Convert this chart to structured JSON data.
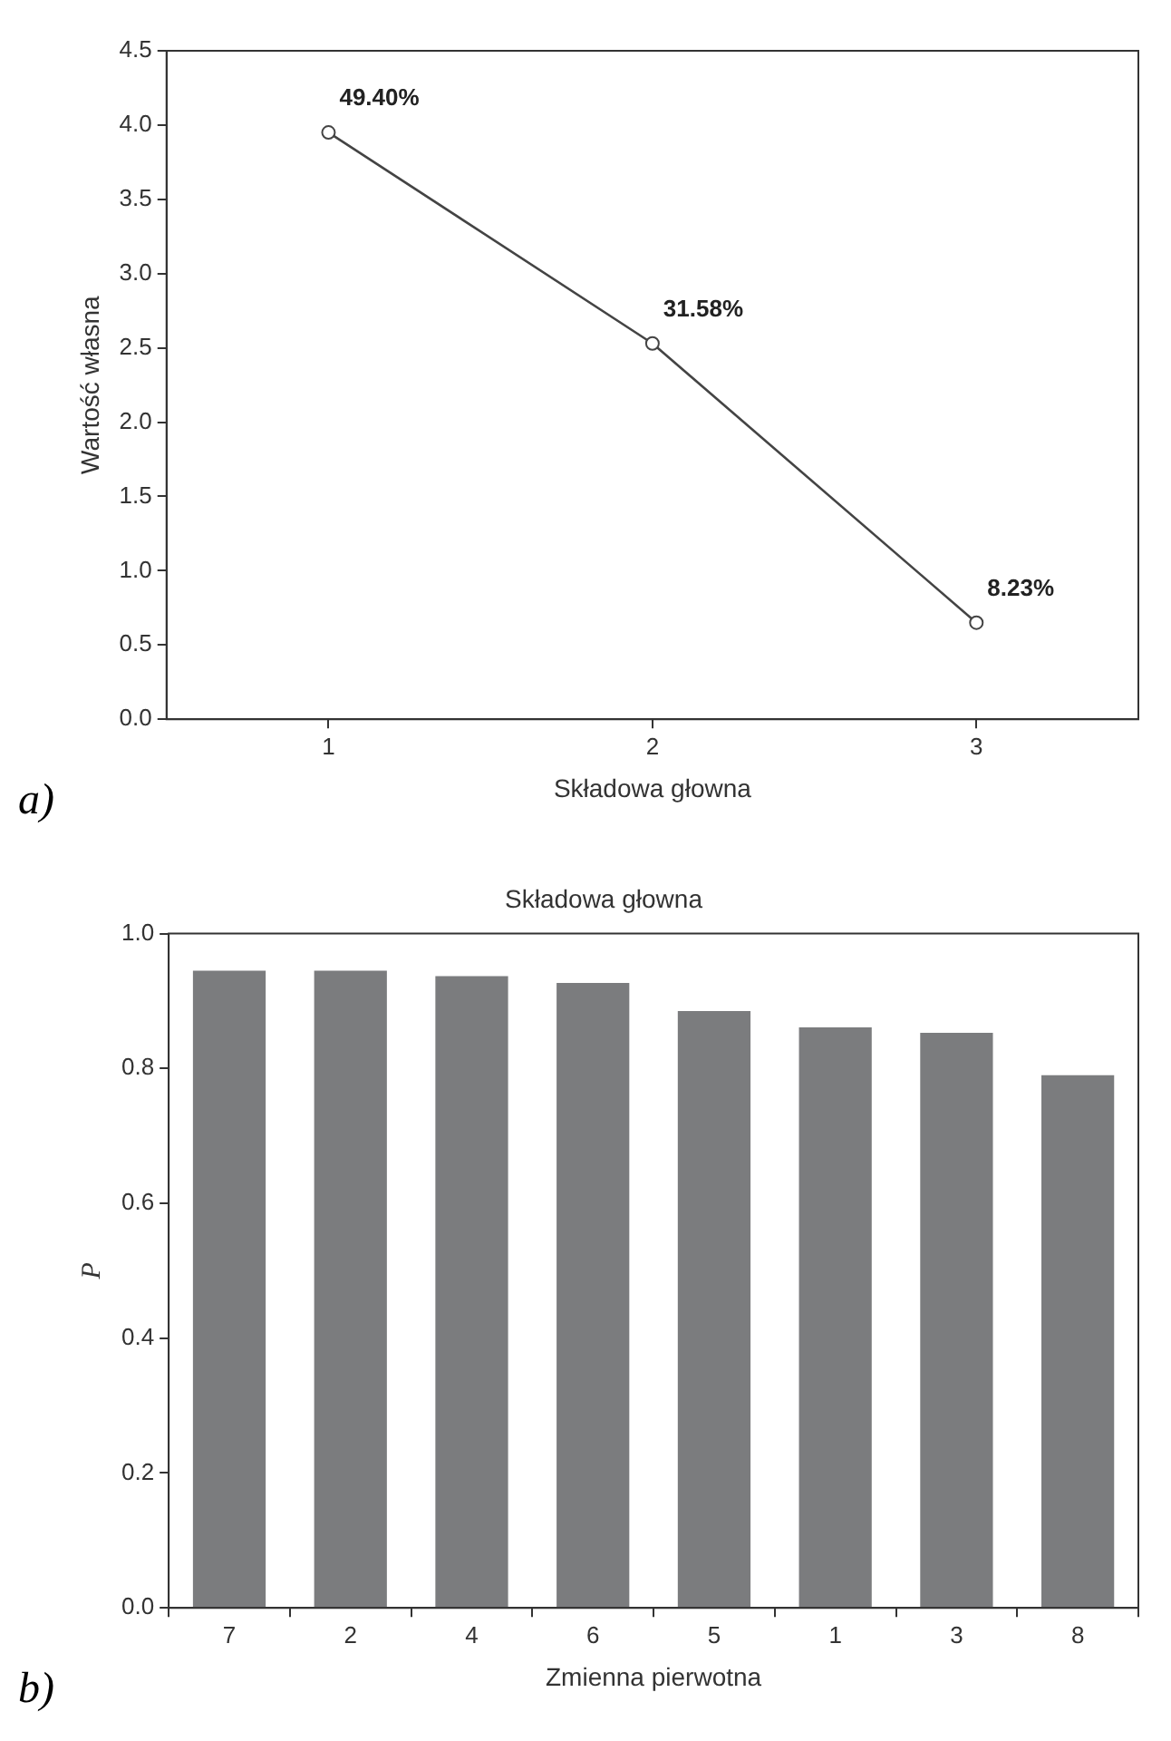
{
  "chart_data": [
    {
      "type": "line",
      "xlabel": "Składowa głowna",
      "ylabel": "Wartość własna",
      "x": [
        1,
        2,
        3
      ],
      "series": [
        {
          "color": "#444444",
          "values": [
            3.95,
            2.53,
            0.65
          ]
        }
      ],
      "xlim": [
        0.5,
        3.5
      ],
      "xticks": [
        1,
        2,
        3
      ],
      "ylim": [
        0,
        4.5
      ],
      "yticks": [
        {
          "value": 0,
          "label": "0.0"
        },
        0.5,
        {
          "value": 1,
          "label": "1.0"
        },
        1.5,
        {
          "value": 2,
          "label": "2.0"
        },
        2.5,
        {
          "value": 3,
          "label": "3.0"
        },
        3.5,
        {
          "value": 4,
          "label": "4.0"
        },
        4.5
      ],
      "marker": "circle",
      "line_style": "solid",
      "grid": false,
      "legend": false,
      "annotations": [
        {
          "text": "49.40%",
          "x": 1,
          "y": 3.95
        },
        {
          "text": "31.58%",
          "x": 2,
          "y": 2.53
        },
        {
          "text": "8.23%",
          "x": 3,
          "y": 0.65
        },
        "a)"
      ]
    },
    {
      "type": "bar",
      "title": "Składowa głowna",
      "xlabel": "Zmienna pierwotna",
      "ylabel": "P",
      "categories": [
        "7",
        "2",
        "4",
        "6",
        "5",
        "1",
        "3",
        "8"
      ],
      "series": [
        {
          "color": "#7b7c7e",
          "values": [
            0.945,
            0.945,
            0.937,
            0.927,
            0.885,
            0.861,
            0.853,
            0.79
          ]
        }
      ],
      "ylim": [
        0,
        1
      ],
      "yticks": [
        {
          "value": 0,
          "label": "0.0"
        },
        0.2,
        0.4,
        0.6,
        0.8,
        {
          "value": 1,
          "label": "1.0"
        }
      ],
      "grid": false,
      "legend": false,
      "annotations": [
        "b)"
      ]
    }
  ]
}
